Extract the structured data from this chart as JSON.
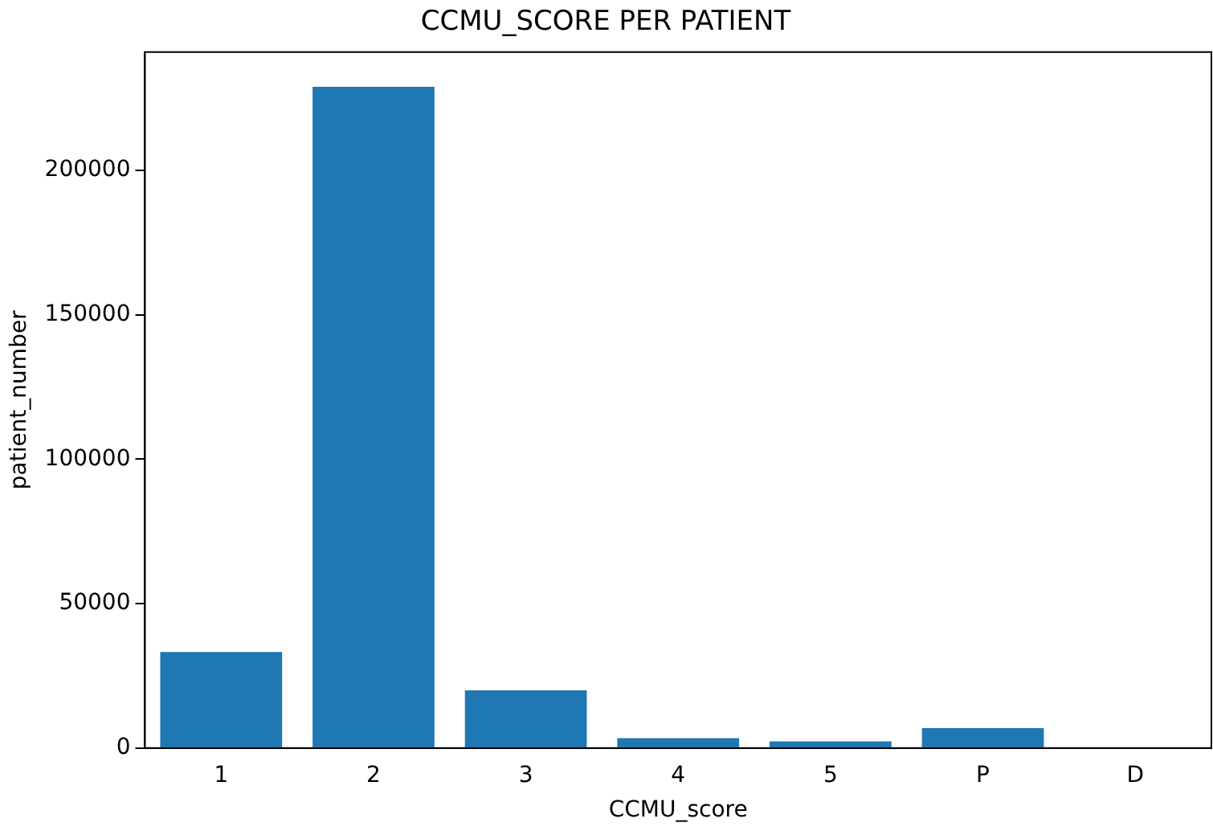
{
  "chart_data": {
    "type": "bar",
    "title": "CCMU_SCORE PER PATIENT",
    "xlabel": "CCMU_score",
    "ylabel": "patient_number",
    "categories": [
      "1",
      "2",
      "3",
      "4",
      "5",
      "P",
      "D"
    ],
    "values": [
      33300,
      229000,
      20000,
      3400,
      2300,
      6900,
      0
    ],
    "color": "#1f77b4",
    "ylim": [
      0,
      241000
    ],
    "yticks": [
      0,
      50000,
      100000,
      150000,
      200000
    ],
    "grid": false,
    "legend": false
  }
}
